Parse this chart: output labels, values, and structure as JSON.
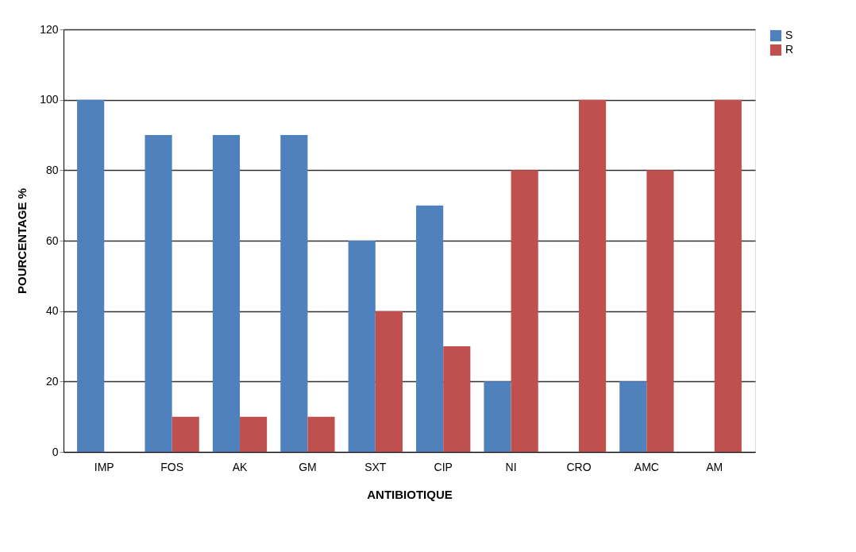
{
  "chart_data": {
    "type": "bar",
    "xlabel": "ANTIBIOTIQUE",
    "ylabel": "POURCENTAGE %",
    "categories": [
      "IMP",
      "FOS",
      "AK",
      "GM",
      "SXT",
      "CIP",
      "NI",
      "CRO",
      "AMC",
      "AM"
    ],
    "series": [
      {
        "name": "S",
        "color": "#4f81bd",
        "values": [
          100,
          90,
          90,
          90,
          60,
          70,
          20,
          0,
          20,
          0
        ]
      },
      {
        "name": "R",
        "color": "#c0504d",
        "values": [
          0,
          10,
          10,
          10,
          40,
          30,
          80,
          100,
          80,
          100
        ]
      }
    ],
    "ylim": [
      0,
      120
    ],
    "yticks": [
      0,
      20,
      40,
      60,
      80,
      100,
      120
    ],
    "grid": "y",
    "legend": "right"
  }
}
